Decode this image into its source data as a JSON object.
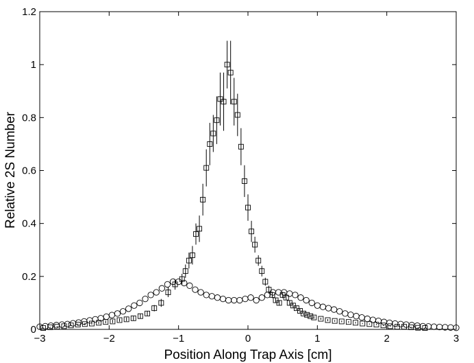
{
  "chart_data": {
    "type": "scatter",
    "xlabel": "Position Along Trap Axis [cm]",
    "ylabel": "Relative 2S Number",
    "xlim": [
      -3,
      3
    ],
    "ylim": [
      0,
      1.2
    ],
    "xticks": [
      "−3",
      "−2",
      "−1",
      "0",
      "1",
      "2",
      "3"
    ],
    "yticks": [
      "0",
      "0.2",
      "0.4",
      "0.6",
      "0.8",
      "1",
      "1.2"
    ],
    "grid": false,
    "series": [
      {
        "marker": "square",
        "x": [
          -2.95,
          -2.85,
          -2.75,
          -2.65,
          -2.55,
          -2.45,
          -2.35,
          -2.25,
          -2.15,
          -2.05,
          -1.95,
          -1.85,
          -1.75,
          -1.65,
          -1.55,
          -1.45,
          -1.35,
          -1.25,
          -1.15,
          -1.05,
          -0.95,
          -0.9,
          -0.85,
          -0.8,
          -0.75,
          -0.7,
          -0.65,
          -0.6,
          -0.55,
          -0.5,
          -0.45,
          -0.4,
          -0.35,
          -0.3,
          -0.25,
          -0.2,
          -0.15,
          -0.1,
          -0.05,
          0.0,
          0.05,
          0.1,
          0.15,
          0.2,
          0.25,
          0.3,
          0.35,
          0.4,
          0.45,
          0.5,
          0.55,
          0.6,
          0.65,
          0.7,
          0.75,
          0.8,
          0.85,
          0.9,
          0.95,
          1.05,
          1.15,
          1.25,
          1.35,
          1.45,
          1.55,
          1.65,
          1.75,
          1.85,
          1.95,
          2.05,
          2.15,
          2.25,
          2.35,
          2.45,
          2.55
        ],
        "y": [
          0.005,
          0.008,
          0.01,
          0.012,
          0.015,
          0.018,
          0.02,
          0.022,
          0.025,
          0.028,
          0.03,
          0.035,
          0.038,
          0.042,
          0.05,
          0.06,
          0.08,
          0.1,
          0.14,
          0.17,
          0.19,
          0.22,
          0.26,
          0.28,
          0.36,
          0.38,
          0.49,
          0.61,
          0.7,
          0.74,
          0.79,
          0.87,
          0.86,
          1.0,
          0.97,
          0.86,
          0.81,
          0.69,
          0.56,
          0.46,
          0.37,
          0.32,
          0.26,
          0.22,
          0.18,
          0.15,
          0.13,
          0.11,
          0.1,
          0.13,
          0.12,
          0.1,
          0.09,
          0.08,
          0.07,
          0.06,
          0.055,
          0.05,
          0.045,
          0.04,
          0.035,
          0.032,
          0.03,
          0.028,
          0.025,
          0.022,
          0.02,
          0.018,
          0.015,
          0.012,
          0.01,
          0.01,
          0.008,
          0.006,
          0.005
        ],
        "err": [
          0.002,
          0.002,
          0.003,
          0.003,
          0.003,
          0.004,
          0.004,
          0.004,
          0.005,
          0.005,
          0.006,
          0.006,
          0.007,
          0.008,
          0.009,
          0.01,
          0.012,
          0.015,
          0.018,
          0.02,
          0.02,
          0.025,
          0.03,
          0.035,
          0.04,
          0.05,
          0.06,
          0.07,
          0.08,
          0.07,
          0.09,
          0.1,
          0.11,
          0.09,
          0.12,
          0.09,
          0.08,
          0.07,
          0.06,
          0.05,
          0.04,
          0.03,
          0.02,
          0.02,
          0.015,
          0.015,
          0.012,
          0.01,
          0.01,
          0.012,
          0.01,
          0.01,
          0.008,
          0.007,
          0.007,
          0.006,
          0.006,
          0.005,
          0.005,
          0.004,
          0.004,
          0.003,
          0.003,
          0.003,
          0.003,
          0.002,
          0.002,
          0.002,
          0.002,
          0.002,
          0.002,
          0.002,
          0.002,
          0.002,
          0.002
        ]
      },
      {
        "marker": "circle",
        "x": [
          -3.0,
          -2.92,
          -2.84,
          -2.76,
          -2.68,
          -2.6,
          -2.52,
          -2.44,
          -2.36,
          -2.28,
          -2.2,
          -2.12,
          -2.04,
          -1.96,
          -1.88,
          -1.8,
          -1.72,
          -1.64,
          -1.56,
          -1.48,
          -1.4,
          -1.32,
          -1.24,
          -1.16,
          -1.08,
          -1.0,
          -0.92,
          -0.84,
          -0.76,
          -0.68,
          -0.6,
          -0.52,
          -0.44,
          -0.36,
          -0.28,
          -0.2,
          -0.12,
          -0.04,
          0.04,
          0.12,
          0.2,
          0.28,
          0.36,
          0.44,
          0.52,
          0.6,
          0.68,
          0.76,
          0.84,
          0.92,
          1.0,
          1.08,
          1.16,
          1.24,
          1.32,
          1.4,
          1.48,
          1.56,
          1.64,
          1.72,
          1.8,
          1.88,
          1.96,
          2.04,
          2.12,
          2.2,
          2.28,
          2.36,
          2.44,
          2.52,
          2.6,
          2.68,
          2.76,
          2.84,
          2.92,
          3.0
        ],
        "y": [
          0.01,
          0.012,
          0.014,
          0.016,
          0.018,
          0.02,
          0.023,
          0.026,
          0.03,
          0.034,
          0.038,
          0.042,
          0.048,
          0.054,
          0.06,
          0.068,
          0.078,
          0.09,
          0.1,
          0.115,
          0.13,
          0.14,
          0.155,
          0.17,
          0.18,
          0.18,
          0.175,
          0.165,
          0.15,
          0.14,
          0.13,
          0.125,
          0.12,
          0.115,
          0.11,
          0.11,
          0.11,
          0.115,
          0.12,
          0.11,
          0.12,
          0.13,
          0.14,
          0.14,
          0.14,
          0.135,
          0.13,
          0.12,
          0.11,
          0.1,
          0.09,
          0.085,
          0.08,
          0.075,
          0.068,
          0.06,
          0.055,
          0.05,
          0.045,
          0.04,
          0.036,
          0.032,
          0.028,
          0.025,
          0.022,
          0.02,
          0.018,
          0.016,
          0.014,
          0.012,
          0.011,
          0.01,
          0.009,
          0.008,
          0.007,
          0.006
        ]
      }
    ]
  }
}
